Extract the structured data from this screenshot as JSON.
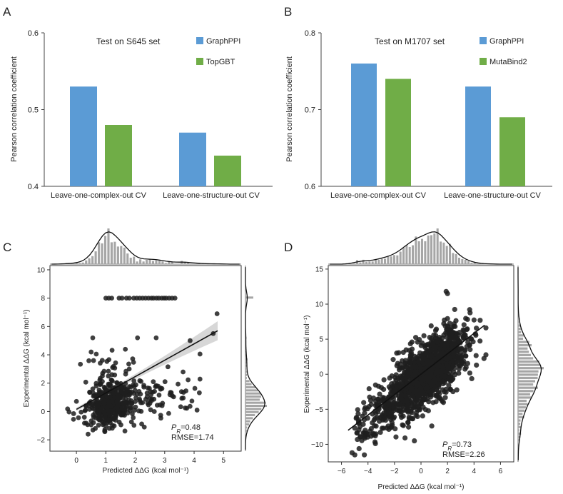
{
  "chart_data": [
    {
      "panel": "A",
      "type": "bar",
      "title": "Test on S645 set",
      "ylabel": "Pearson correlation coefficient",
      "ylim": [
        0.4,
        0.6
      ],
      "yticks": [
        "0.4",
        "0.5",
        "0.6"
      ],
      "categories": [
        "Leave-one-complex-out CV",
        "Leave-one-structure-out CV"
      ],
      "series": [
        {
          "name": "GraphPPI",
          "color": "#5b9bd5",
          "values": [
            0.53,
            0.47
          ]
        },
        {
          "name": "TopGBT",
          "color": "#70ad47",
          "values": [
            0.48,
            0.44
          ]
        }
      ],
      "legend": "top-right",
      "grid": false
    },
    {
      "panel": "B",
      "type": "bar",
      "title": "Test on M1707 set",
      "ylabel": "Pearson correlation coefficient",
      "ylim": [
        0.6,
        0.8
      ],
      "yticks": [
        "0.6",
        "0.7",
        "0.8"
      ],
      "categories": [
        "Leave-one-complex-out CV",
        "Leave-one-structure-out CV"
      ],
      "series": [
        {
          "name": "GraphPPI",
          "color": "#5b9bd5",
          "values": [
            0.76,
            0.73
          ]
        },
        {
          "name": "MutaBind2",
          "color": "#70ad47",
          "values": [
            0.74,
            0.69
          ]
        }
      ],
      "legend": "top-right",
      "grid": false
    },
    {
      "panel": "C",
      "type": "scatter",
      "xlabel": "Predicted ΔΔG (kcal mol⁻¹)",
      "ylabel": "Experimental ΔΔG (kcal mol⁻¹)",
      "xlim": [
        -0.9,
        5.6
      ],
      "ylim": [
        -2.8,
        10.3
      ],
      "xticks": [
        "0",
        "1",
        "2",
        "3",
        "4",
        "5"
      ],
      "yticks": [
        "−2",
        "0",
        "2",
        "4",
        "6",
        "8",
        "10"
      ],
      "stat_label": "=0.48",
      "rmse_label": "RMSE=1.74",
      "fit_line": {
        "x": [
          0.0,
          4.8
        ],
        "y": [
          0.15,
          5.7
        ]
      },
      "ceiling_points": {
        "x": [
          1.0,
          1.1,
          1.2,
          1.45,
          1.55,
          1.7,
          1.8,
          1.95,
          2.05,
          2.15,
          2.25,
          2.35,
          2.45,
          2.55,
          2.62,
          2.72,
          2.8,
          2.9,
          2.98,
          3.05,
          3.15,
          3.25,
          3.35
        ],
        "y": 8.0
      },
      "points": {
        "count": 560,
        "seed": 11
      }
    },
    {
      "panel": "D",
      "type": "scatter",
      "xlabel": "Predicted ΔΔG (kcal mol⁻¹)",
      "ylabel": "Experimental ΔΔG (kcal mol⁻¹)",
      "xlim": [
        -7.0,
        7.0
      ],
      "ylim": [
        -12.5,
        15.5
      ],
      "xticks": [
        "−6",
        "−4",
        "−2",
        "0",
        "2",
        "4",
        "6"
      ],
      "yticks": [
        "−10",
        "−5",
        "0",
        "5",
        "10",
        "15"
      ],
      "stat_label": "=0.73",
      "rmse_label": "RMSE=2.26",
      "fit_line": {
        "x": [
          -5.5,
          4.8
        ],
        "y": [
          -8.0,
          7.0
        ]
      },
      "points": {
        "count": 1500,
        "seed": 23
      }
    }
  ],
  "panel_labels": {
    "a": "A",
    "b": "B",
    "c": "C",
    "d": "D"
  },
  "pr_symbol": "P",
  "pr_subscript": "R",
  "colors": {
    "graphppi": "#5b9bd5",
    "green": "#70ad47",
    "points": "#1f1f1f",
    "hist": "#a6a6a6",
    "ci": "#d0d0d0"
  }
}
